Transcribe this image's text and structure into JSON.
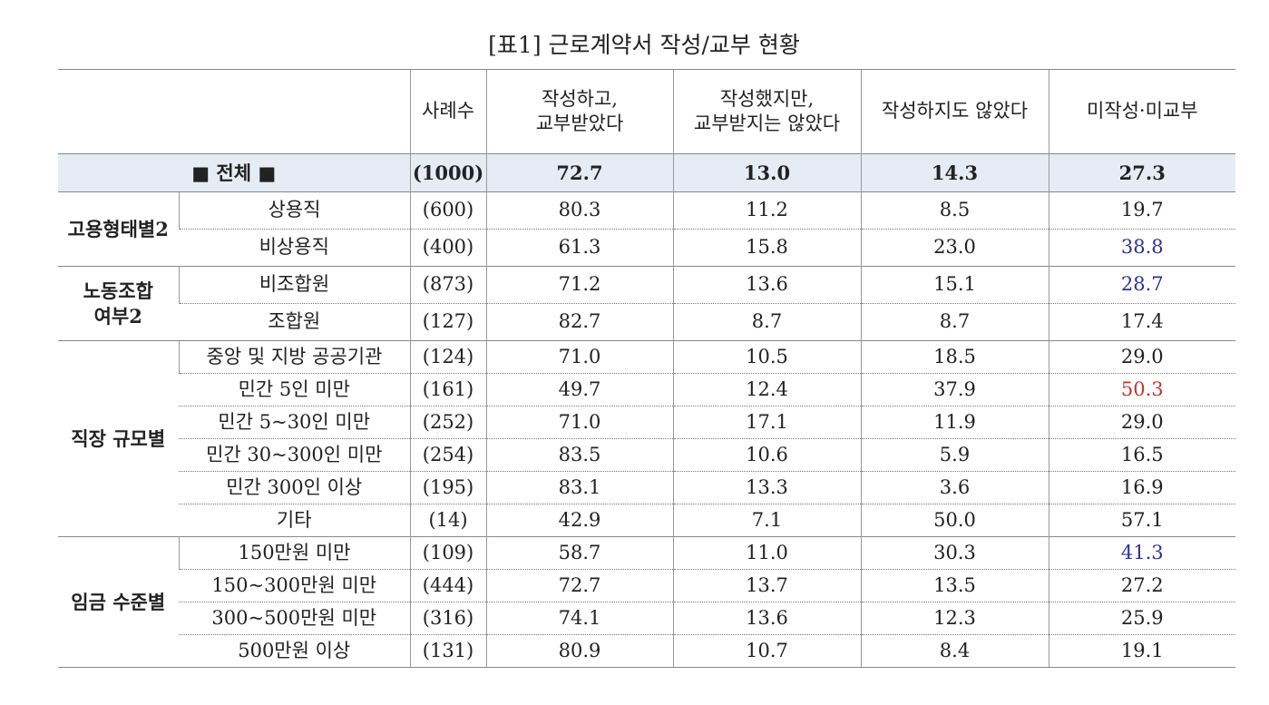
{
  "title": "[표1] 근로계약서 작성/교부 현황",
  "table": {
    "columns": [
      "사례수",
      "작성하고,\n교부받았다",
      "작성했지만,\n교부받지는 않았다",
      "작성하지도 않았다",
      "미작성·미교부"
    ],
    "total": {
      "label": "■ 전체 ■",
      "cells": [
        "(1000)",
        "72.7",
        "13.0",
        "14.3",
        "27.3"
      ]
    },
    "groups": [
      {
        "name": "고용형태별2",
        "rows": [
          {
            "label": "상용직",
            "cells": [
              "(600)",
              "80.3",
              "11.2",
              "8.5",
              "19.7"
            ]
          },
          {
            "label": "비상용직",
            "cells": [
              "(400)",
              "61.3",
              "15.8",
              "23.0",
              "38.8"
            ],
            "color": "#2e3192"
          }
        ]
      },
      {
        "name": "노동조합\n여부2",
        "rows": [
          {
            "label": "비조합원",
            "cells": [
              "(873)",
              "71.2",
              "13.6",
              "15.1",
              "28.7"
            ],
            "color": "#2e3192"
          },
          {
            "label": "조합원",
            "cells": [
              "(127)",
              "82.7",
              "8.7",
              "8.7",
              "17.4"
            ]
          }
        ]
      },
      {
        "name": "직장 규모별",
        "rows": [
          {
            "label": "중앙 및 지방 공공기관",
            "cells": [
              "(124)",
              "71.0",
              "10.5",
              "18.5",
              "29.0"
            ]
          },
          {
            "label": "민간 5인 미만",
            "cells": [
              "(161)",
              "49.7",
              "12.4",
              "37.9",
              "50.3"
            ],
            "color": "#c0392b"
          },
          {
            "label": "민간 5~30인 미만",
            "cells": [
              "(252)",
              "71.0",
              "17.1",
              "11.9",
              "29.0"
            ]
          },
          {
            "label": "민간 30~300인 미만",
            "cells": [
              "(254)",
              "83.5",
              "10.6",
              "5.9",
              "16.5"
            ]
          },
          {
            "label": "민간 300인 이상",
            "cells": [
              "(195)",
              "83.1",
              "13.3",
              "3.6",
              "16.9"
            ]
          },
          {
            "label": "기타",
            "cells": [
              "(14)",
              "42.9",
              "7.1",
              "50.0",
              "57.1"
            ]
          }
        ]
      },
      {
        "name": "임금 수준별",
        "rows": [
          {
            "label": "150만원 미만",
            "cells": [
              "(109)",
              "58.7",
              "11.0",
              "30.3",
              "41.3"
            ],
            "color": "#2e3192"
          },
          {
            "label": "150~300만원 미만",
            "cells": [
              "(444)",
              "72.7",
              "13.7",
              "13.5",
              "27.2"
            ]
          },
          {
            "label": "300~500만원 미만",
            "cells": [
              "(316)",
              "74.1",
              "13.6",
              "12.3",
              "25.9"
            ]
          },
          {
            "label": "500만원 이상",
            "cells": [
              "(131)",
              "80.9",
              "10.7",
              "8.4",
              "19.1"
            ]
          }
        ]
      }
    ]
  }
}
